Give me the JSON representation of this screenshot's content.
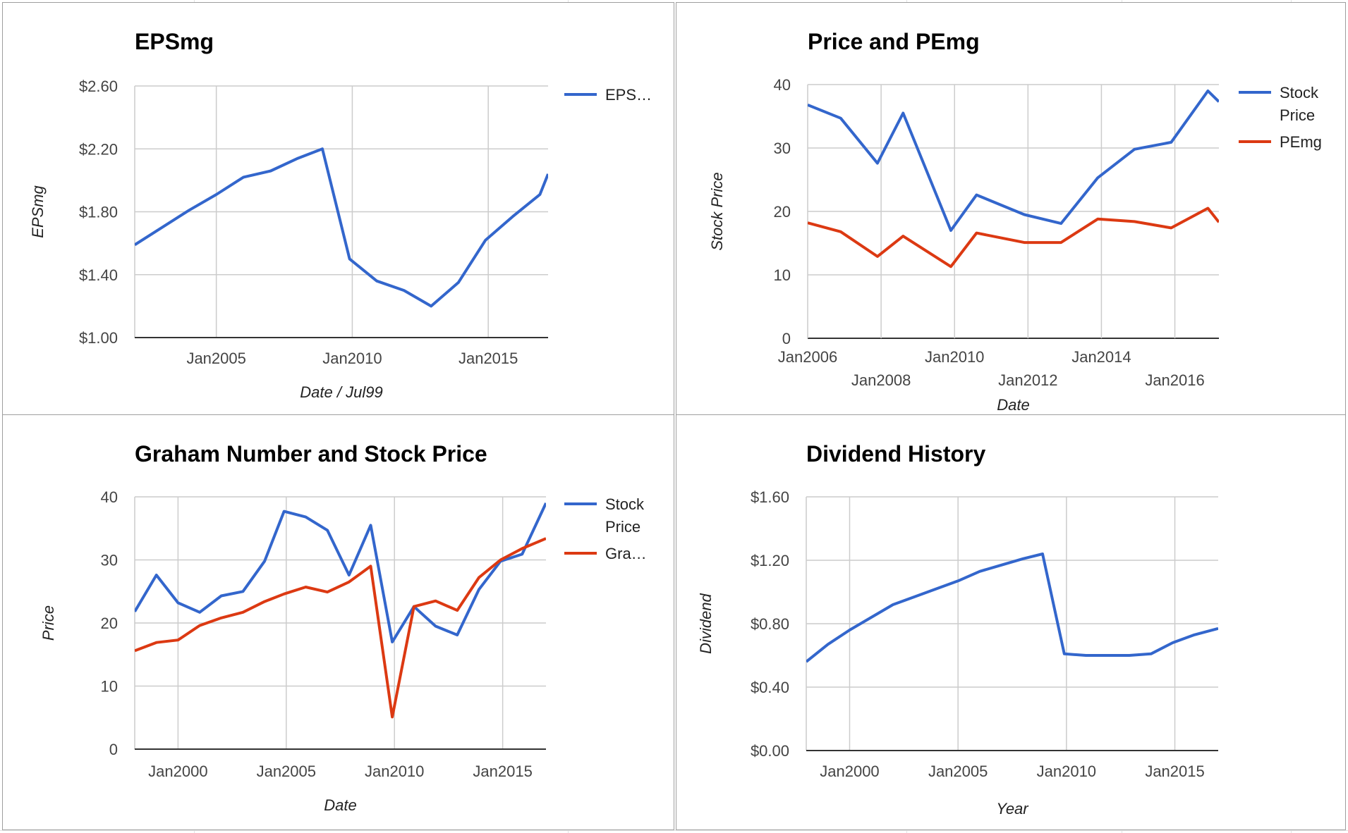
{
  "colors": {
    "blue": "#3366cc",
    "red": "#dc3912",
    "grid": "#cccccc",
    "axis": "#333333"
  },
  "chart_data": [
    {
      "type": "line",
      "title": "EPSmg",
      "xlabel": "Date / Jul99",
      "ylabel": "EPSmg",
      "x_ticks": [
        2005,
        2010,
        2015
      ],
      "x_tick_labels": [
        "Jan2005",
        "Jan2010",
        "Jan2015"
      ],
      "xlim": [
        2002.0,
        2017.2
      ],
      "y_ticks": [
        1.0,
        1.4,
        1.8,
        2.2,
        2.6
      ],
      "y_tick_labels": [
        "$1.00",
        "$1.40",
        "$1.80",
        "$2.20",
        "$2.60"
      ],
      "ylim": [
        1.0,
        2.6
      ],
      "grid": true,
      "legend_position": "right",
      "series": [
        {
          "name": "EPS…",
          "color": "#3366cc",
          "x": [
            2002.0,
            2003.0,
            2004.0,
            2005.0,
            2006.0,
            2007.0,
            2008.0,
            2008.9,
            2009.9,
            2010.9,
            2011.9,
            2012.9,
            2013.9,
            2014.9,
            2015.9,
            2016.9,
            2017.2
          ],
          "y": [
            1.59,
            1.7,
            1.81,
            1.91,
            2.02,
            2.06,
            2.14,
            2.2,
            1.5,
            1.36,
            1.3,
            1.2,
            1.35,
            1.62,
            1.77,
            1.91,
            2.04
          ]
        }
      ]
    },
    {
      "type": "line",
      "title": "Price and PEmg",
      "xlabel": "Date",
      "ylabel": "Stock Price",
      "x_ticks": [
        2006,
        2008,
        2010,
        2012,
        2014,
        2016
      ],
      "x_tick_labels": [
        "Jan2006",
        "Jan2008",
        "Jan2010",
        "Jan2012",
        "Jan2014",
        "Jan2016"
      ],
      "xlim": [
        2006.0,
        2017.2
      ],
      "y_ticks": [
        0,
        10,
        20,
        30,
        40
      ],
      "y_tick_labels": [
        "0",
        "10",
        "20",
        "30",
        "40"
      ],
      "ylim": [
        0,
        40
      ],
      "grid": true,
      "legend_position": "right",
      "series": [
        {
          "name": "Stock Price",
          "color": "#3366cc",
          "x": [
            2006.0,
            2006.9,
            2007.9,
            2008.6,
            2009.9,
            2010.6,
            2011.9,
            2012.9,
            2013.9,
            2014.9,
            2015.9,
            2016.9,
            2017.2
          ],
          "y": [
            36.8,
            34.7,
            27.6,
            35.5,
            17.0,
            22.6,
            19.5,
            18.1,
            25.3,
            29.8,
            30.9,
            39.0,
            37.3
          ]
        },
        {
          "name": "PEmg",
          "color": "#dc3912",
          "x": [
            2006.0,
            2006.9,
            2007.9,
            2008.6,
            2009.9,
            2010.6,
            2011.9,
            2012.9,
            2013.9,
            2014.9,
            2015.9,
            2016.9,
            2017.2
          ],
          "y": [
            18.2,
            16.8,
            12.9,
            16.1,
            11.3,
            16.6,
            15.1,
            15.1,
            18.8,
            18.4,
            17.4,
            20.5,
            18.3
          ]
        }
      ]
    },
    {
      "type": "line",
      "title": "Graham Number and Stock Price",
      "xlabel": "Date",
      "ylabel": "Price",
      "x_ticks": [
        2000,
        2005,
        2010,
        2015
      ],
      "x_tick_labels": [
        "Jan2000",
        "Jan2005",
        "Jan2010",
        "Jan2015"
      ],
      "xlim": [
        1998.0,
        2017.0
      ],
      "y_ticks": [
        0,
        10,
        20,
        30,
        40
      ],
      "y_tick_labels": [
        "0",
        "10",
        "20",
        "30",
        "40"
      ],
      "ylim": [
        0,
        40
      ],
      "grid": true,
      "legend_position": "right",
      "series": [
        {
          "name": "Stock Price",
          "color": "#3366cc",
          "x": [
            1998.0,
            1999.0,
            2000.0,
            2001.0,
            2002.0,
            2003.0,
            2004.0,
            2004.9,
            2005.9,
            2006.9,
            2007.9,
            2008.9,
            2009.9,
            2010.9,
            2011.9,
            2012.9,
            2013.9,
            2014.9,
            2015.9,
            2017.0
          ],
          "y": [
            21.8,
            27.6,
            23.2,
            21.7,
            24.3,
            25.0,
            29.8,
            37.7,
            36.8,
            34.7,
            27.6,
            35.5,
            17.0,
            22.6,
            19.5,
            18.1,
            25.3,
            29.8,
            30.9,
            39.0
          ]
        },
        {
          "name": "Gra…",
          "color": "#dc3912",
          "x": [
            1998.0,
            1999.0,
            2000.0,
            2001.0,
            2002.0,
            2003.0,
            2004.0,
            2004.9,
            2005.9,
            2006.9,
            2007.9,
            2008.9,
            2009.9,
            2010.9,
            2011.9,
            2012.9,
            2013.9,
            2014.9,
            2015.9,
            2017.0
          ],
          "y": [
            15.6,
            16.9,
            17.3,
            19.6,
            20.8,
            21.7,
            23.4,
            24.6,
            25.7,
            24.9,
            26.5,
            29.0,
            5.1,
            22.6,
            23.5,
            22.0,
            27.2,
            30.0,
            31.8,
            33.4
          ]
        }
      ]
    },
    {
      "type": "line",
      "title": "Dividend History",
      "xlabel": "Year",
      "ylabel": "Dividend",
      "x_ticks": [
        2000,
        2005,
        2010,
        2015
      ],
      "x_tick_labels": [
        "Jan2000",
        "Jan2005",
        "Jan2010",
        "Jan2015"
      ],
      "xlim": [
        1998.0,
        2017.0
      ],
      "y_ticks": [
        0.0,
        0.4,
        0.8,
        1.2,
        1.6
      ],
      "y_tick_labels": [
        "$0.00",
        "$0.40",
        "$0.80",
        "$1.20",
        "$1.60"
      ],
      "ylim": [
        0.0,
        1.6
      ],
      "grid": true,
      "legend_position": "none",
      "series": [
        {
          "name": "",
          "color": "#3366cc",
          "x": [
            1998.0,
            1999.0,
            2000.0,
            2001.0,
            2002.0,
            2003.0,
            2004.0,
            2005.0,
            2006.0,
            2007.0,
            2008.0,
            2008.9,
            2009.9,
            2010.9,
            2011.9,
            2012.9,
            2013.9,
            2014.9,
            2015.9,
            2017.0
          ],
          "y": [
            0.56,
            0.67,
            0.76,
            0.84,
            0.92,
            0.97,
            1.02,
            1.07,
            1.13,
            1.17,
            1.21,
            1.24,
            0.61,
            0.6,
            0.6,
            0.6,
            0.61,
            0.68,
            0.73,
            0.77
          ]
        }
      ]
    }
  ]
}
